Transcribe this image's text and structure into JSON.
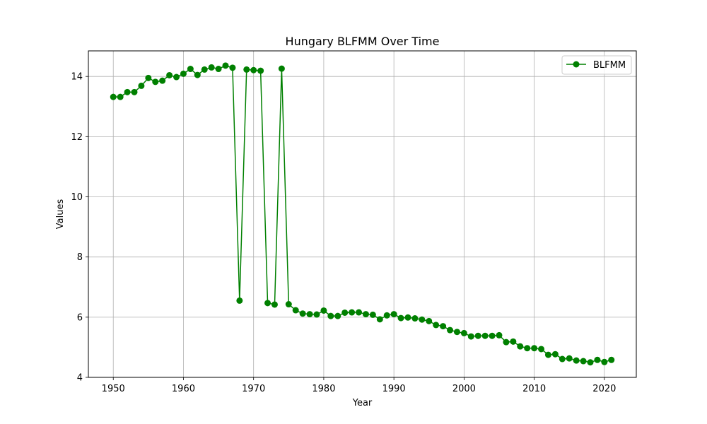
{
  "chart_data": {
    "type": "line",
    "title": "Hungary BLFMM Over Time",
    "xlabel": "Year",
    "ylabel": "Values",
    "xlim": [
      1946.45,
      2024.55
    ],
    "ylim": [
      4,
      14.85
    ],
    "xticks": [
      1950,
      1960,
      1970,
      1980,
      1990,
      2000,
      2010,
      2020
    ],
    "yticks": [
      4,
      6,
      8,
      10,
      12,
      14
    ],
    "grid": true,
    "legend_position": "top-right",
    "colors": {
      "series": "#008000",
      "grid": "#b0b0b0",
      "axes": "#000000"
    },
    "series": [
      {
        "name": "BLFMM",
        "marker": "circle",
        "x": [
          1950,
          1951,
          1952,
          1953,
          1954,
          1955,
          1956,
          1957,
          1958,
          1959,
          1960,
          1961,
          1962,
          1963,
          1964,
          1965,
          1966,
          1967,
          1968,
          1969,
          1970,
          1971,
          1972,
          1973,
          1974,
          1975,
          1976,
          1977,
          1978,
          1979,
          1980,
          1981,
          1982,
          1983,
          1984,
          1985,
          1986,
          1987,
          1988,
          1989,
          1990,
          1991,
          1992,
          1993,
          1994,
          1995,
          1996,
          1997,
          1998,
          1999,
          2000,
          2001,
          2002,
          2003,
          2004,
          2005,
          2006,
          2007,
          2008,
          2009,
          2010,
          2011,
          2012,
          2013,
          2014,
          2015,
          2016,
          2017,
          2018,
          2019,
          2020,
          2021
        ],
        "y": [
          13.32,
          13.32,
          13.48,
          13.48,
          13.69,
          13.95,
          13.82,
          13.86,
          14.04,
          13.98,
          14.09,
          14.25,
          14.05,
          14.23,
          14.3,
          14.25,
          14.36,
          14.29,
          6.55,
          14.23,
          14.21,
          14.19,
          6.47,
          6.42,
          14.26,
          6.43,
          6.23,
          6.12,
          6.1,
          6.09,
          6.22,
          6.04,
          6.04,
          6.15,
          6.16,
          6.16,
          6.1,
          6.08,
          5.93,
          6.06,
          6.1,
          5.97,
          5.99,
          5.96,
          5.92,
          5.87,
          5.74,
          5.7,
          5.57,
          5.51,
          5.47,
          5.36,
          5.38,
          5.38,
          5.38,
          5.4,
          5.17,
          5.19,
          5.03,
          4.97,
          4.97,
          4.94,
          4.75,
          4.77,
          4.61,
          4.63,
          4.56,
          4.54,
          4.5,
          4.58,
          4.51,
          4.58
        ]
      }
    ]
  }
}
